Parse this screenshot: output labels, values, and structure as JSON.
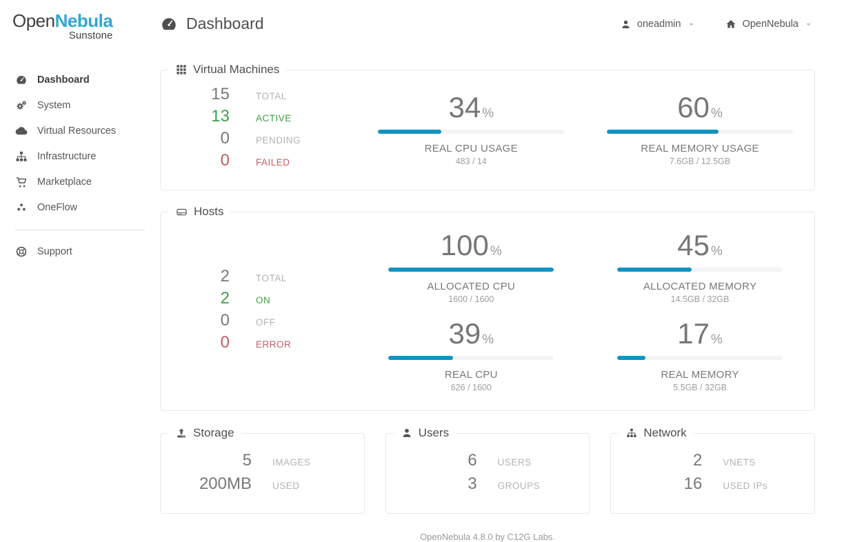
{
  "brand": {
    "name_open": "Open",
    "name_nebula": "Nebula",
    "subtitle": "Sunstone"
  },
  "header": {
    "title": "Dashboard",
    "user_menu": {
      "label": "oneadmin"
    },
    "zone_menu": {
      "label": "OpenNebula"
    }
  },
  "sidebar": {
    "items": [
      {
        "label": "Dashboard",
        "icon": "dashboard-icon",
        "active": true
      },
      {
        "label": "System",
        "icon": "gears-icon"
      },
      {
        "label": "Virtual Resources",
        "icon": "cloud-icon"
      },
      {
        "label": "Infrastructure",
        "icon": "sitemap-icon"
      },
      {
        "label": "Marketplace",
        "icon": "cart-icon"
      },
      {
        "label": "OneFlow",
        "icon": "cubes-icon"
      }
    ],
    "footer_items": [
      {
        "label": "Support",
        "icon": "life-ring-icon"
      }
    ]
  },
  "panels": {
    "vms": {
      "title": "Virtual Machines",
      "icon": "th-grid-icon",
      "stats": [
        {
          "value": "15",
          "label": "TOTAL",
          "state": "total"
        },
        {
          "value": "13",
          "label": "ACTIVE",
          "state": "active"
        },
        {
          "value": "0",
          "label": "PENDING",
          "state": "pending"
        },
        {
          "value": "0",
          "label": "FAILED",
          "state": "failed"
        }
      ],
      "gauges": [
        {
          "percent": 34,
          "unit": "%",
          "label": "REAL CPU USAGE",
          "detail": "483 / 14"
        },
        {
          "percent": 60,
          "unit": "%",
          "label": "REAL MEMORY USAGE",
          "detail": "7.6GB / 12.5GB"
        }
      ]
    },
    "hosts": {
      "title": "Hosts",
      "icon": "server-icon",
      "stats": [
        {
          "value": "2",
          "label": "TOTAL",
          "state": "total"
        },
        {
          "value": "2",
          "label": "ON",
          "state": "on"
        },
        {
          "value": "0",
          "label": "OFF",
          "state": "off"
        },
        {
          "value": "0",
          "label": "ERROR",
          "state": "error"
        }
      ],
      "gauges": [
        {
          "percent": 100,
          "unit": "%",
          "label": "ALLOCATED CPU",
          "detail": "1600 / 1600"
        },
        {
          "percent": 45,
          "unit": "%",
          "label": "ALLOCATED MEMORY",
          "detail": "14.5GB / 32GB"
        },
        {
          "percent": 39,
          "unit": "%",
          "label": "REAL CPU",
          "detail": "626 / 1600"
        },
        {
          "percent": 17,
          "unit": "%",
          "label": "REAL MEMORY",
          "detail": "5.5GB / 32GB"
        }
      ]
    },
    "storage": {
      "title": "Storage",
      "icon": "upload-icon",
      "stats": [
        {
          "value": "5",
          "label": "IMAGES"
        },
        {
          "value": "200MB",
          "label": "USED"
        }
      ]
    },
    "users": {
      "title": "Users",
      "icon": "user-icon",
      "stats": [
        {
          "value": "6",
          "label": "USERS"
        },
        {
          "value": "3",
          "label": "GROUPS"
        }
      ]
    },
    "network": {
      "title": "Network",
      "icon": "sitemap-icon",
      "stats": [
        {
          "value": "2",
          "label": "VNETS"
        },
        {
          "value": "16",
          "label": "USED IPs"
        }
      ]
    }
  },
  "footer": {
    "text": "OpenNebula 4.8.0 by C12G Labs."
  },
  "colors": {
    "accent_bar": "#1093C0",
    "brand_blue": "#2FA8D2",
    "status_green": "#3FA046",
    "status_red": "#C25C63",
    "bar_track": "#F4F4F4",
    "panel_border": "#E8E8E8"
  }
}
